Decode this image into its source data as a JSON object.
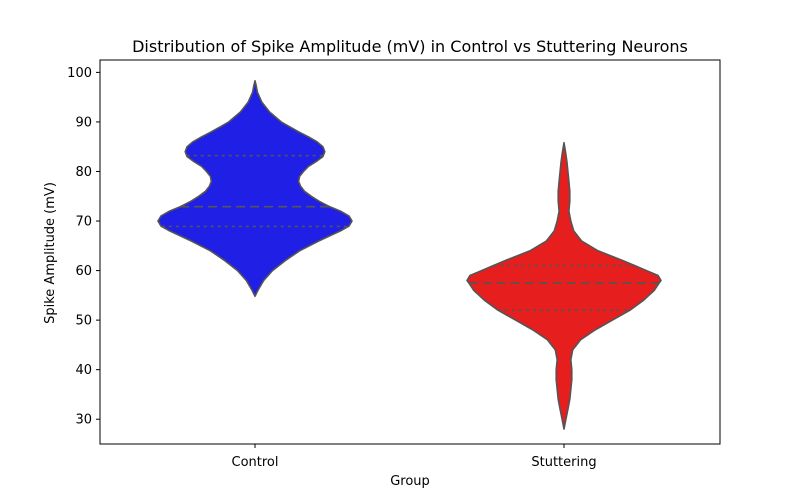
{
  "chart_data": {
    "type": "violin",
    "title": "Distribution of Spike Amplitude (mV) in Control vs Stuttering Neurons",
    "xlabel": "Group",
    "ylabel": "Spike Amplitude (mV)",
    "categories": [
      "Control",
      "Stuttering"
    ],
    "ylim": [
      25,
      102.5
    ],
    "yticks": [
      30,
      40,
      50,
      60,
      70,
      80,
      90,
      100
    ],
    "grid": false,
    "legend": "none",
    "series": [
      {
        "category": "Control",
        "color": "#1f1fe6",
        "range": [
          54.8,
          98.3
        ],
        "quartiles": {
          "q1": 68.9,
          "median": 72.9,
          "q3": 83.2
        },
        "density": [
          [
            54.8,
            0.0
          ],
          [
            56,
            0.03
          ],
          [
            58,
            0.09
          ],
          [
            60,
            0.18
          ],
          [
            62,
            0.31
          ],
          [
            64,
            0.46
          ],
          [
            66,
            0.66
          ],
          [
            68,
            0.88
          ],
          [
            69,
            0.97
          ],
          [
            70,
            1.0
          ],
          [
            71,
            0.97
          ],
          [
            72,
            0.88
          ],
          [
            73,
            0.76
          ],
          [
            74,
            0.66
          ],
          [
            75,
            0.58
          ],
          [
            76,
            0.51
          ],
          [
            77,
            0.47
          ],
          [
            78,
            0.45
          ],
          [
            79,
            0.46
          ],
          [
            80,
            0.5
          ],
          [
            81,
            0.55
          ],
          [
            82,
            0.63
          ],
          [
            83,
            0.7
          ],
          [
            84,
            0.72
          ],
          [
            85,
            0.7
          ],
          [
            86,
            0.64
          ],
          [
            87,
            0.55
          ],
          [
            88,
            0.45
          ],
          [
            89,
            0.36
          ],
          [
            90,
            0.27
          ],
          [
            92,
            0.15
          ],
          [
            94,
            0.07
          ],
          [
            96,
            0.025
          ],
          [
            97.5,
            0.01
          ],
          [
            98.3,
            0.0
          ]
        ]
      },
      {
        "category": "Stuttering",
        "color": "#e61e1e",
        "range": [
          28.0,
          85.8
        ],
        "quartiles": {
          "q1": 52.0,
          "median": 57.5,
          "q3": 61.0
        },
        "density": [
          [
            28.0,
            0.0
          ],
          [
            30,
            0.02
          ],
          [
            32,
            0.04
          ],
          [
            34,
            0.06
          ],
          [
            36,
            0.07
          ],
          [
            38,
            0.08
          ],
          [
            40,
            0.08
          ],
          [
            42,
            0.07
          ],
          [
            44,
            0.09
          ],
          [
            46,
            0.17
          ],
          [
            48,
            0.32
          ],
          [
            50,
            0.5
          ],
          [
            52,
            0.68
          ],
          [
            54,
            0.82
          ],
          [
            56,
            0.93
          ],
          [
            57.5,
            0.98
          ],
          [
            58,
            1.0
          ],
          [
            59,
            0.97
          ],
          [
            60,
            0.85
          ],
          [
            61,
            0.73
          ],
          [
            62,
            0.61
          ],
          [
            63,
            0.48
          ],
          [
            64,
            0.35
          ],
          [
            66,
            0.18
          ],
          [
            68,
            0.1
          ],
          [
            70,
            0.07
          ],
          [
            72,
            0.05
          ],
          [
            74,
            0.06
          ],
          [
            76,
            0.06
          ],
          [
            78,
            0.05
          ],
          [
            80,
            0.04
          ],
          [
            82,
            0.03
          ],
          [
            84,
            0.015
          ],
          [
            85.8,
            0.0
          ]
        ]
      }
    ]
  }
}
